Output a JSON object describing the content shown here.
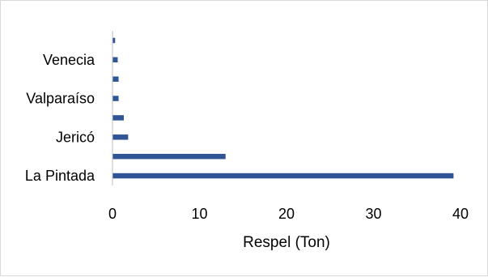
{
  "chart_data": {
    "type": "bar",
    "orientation": "horizontal",
    "categories": [
      "",
      "Venecia",
      "",
      "Valparaíso",
      "",
      "Jericó",
      "",
      "La Pintada"
    ],
    "values": [
      0.3,
      0.6,
      0.7,
      0.7,
      1.3,
      1.8,
      13.0,
      39.2
    ],
    "xlabel": "Respel (Ton)",
    "ylabel": "",
    "xlim": [
      0,
      40
    ],
    "xticks": [
      "0",
      "10",
      "20",
      "30",
      "40"
    ],
    "grid": false,
    "legend": "none",
    "bar_color": "#2f5597"
  }
}
